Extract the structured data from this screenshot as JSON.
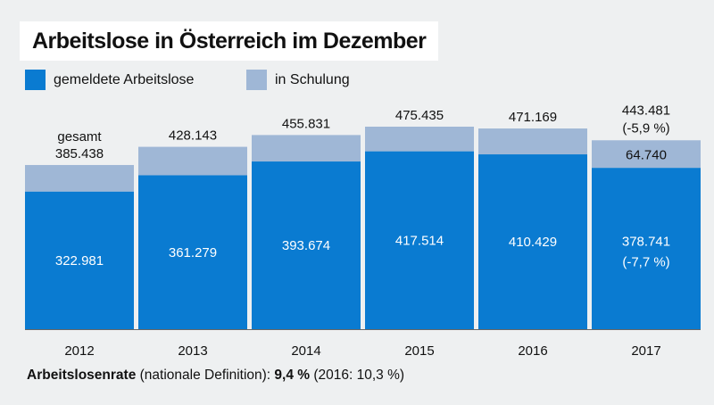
{
  "header": {
    "title": "Arbeitslose in Österreich im Dezember"
  },
  "colors": {
    "registered": "#0a7bd1",
    "training": "#9fb7d6",
    "background": "#eef0f1"
  },
  "legend": {
    "registered_label": "gemeldete Arbeitslose",
    "training_label": "in Schulung"
  },
  "chart_data": {
    "type": "bar",
    "stacked": true,
    "categories": [
      "2012",
      "2013",
      "2014",
      "2015",
      "2016",
      "2017"
    ],
    "series": [
      {
        "name": "gemeldete Arbeitslose",
        "values": [
          322981,
          361279,
          393674,
          417514,
          410429,
          378741
        ]
      },
      {
        "name": "in Schulung",
        "values": [
          62457,
          66864,
          62157,
          57921,
          60740,
          64740
        ]
      }
    ],
    "totals": [
      385438,
      428143,
      455831,
      475435,
      471169,
      443481
    ],
    "labels": {
      "registered": [
        "322.981",
        "361.279",
        "393.674",
        "417.514",
        "410.429",
        "378.741"
      ],
      "totals": [
        "385.438",
        "428.143",
        "455.831",
        "475.435",
        "471.169",
        "443.481"
      ],
      "total_first_prefix": "gesamt",
      "registered_last_change": "(-7,7 %)",
      "total_last_change": "(-5,9 %)",
      "training_last": "64.740"
    },
    "ylim": [
      0,
      475435
    ],
    "grid": false
  },
  "footer": {
    "label": "Arbeitslosenrate",
    "definition": " (nationale Definition): ",
    "rate": "9,4 %",
    "previous": " (2016: 10,3 %)"
  }
}
